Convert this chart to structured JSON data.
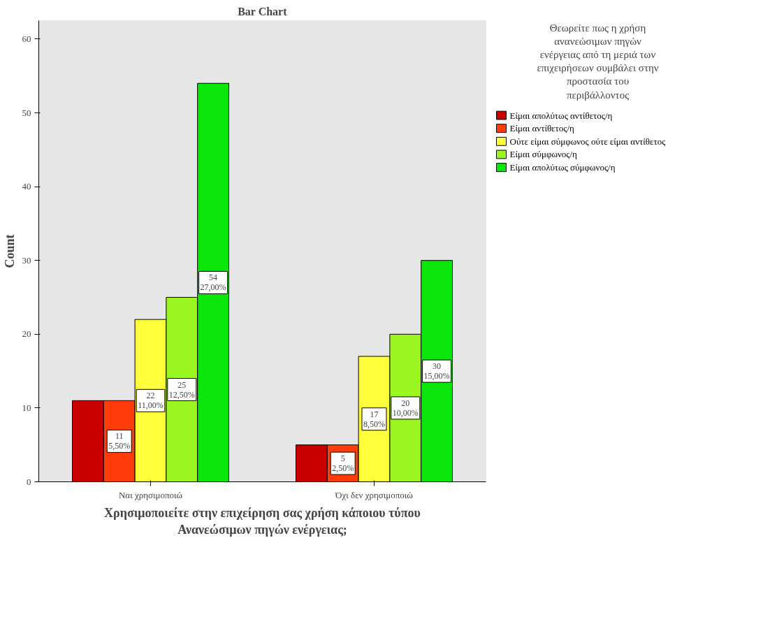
{
  "chart_data": {
    "type": "bar",
    "title": "Bar Chart",
    "xlabel": "Χρησιμοποιείτε στην επιχείρηση σας χρήση κάποιου τύπου Ανανεώσιμων πηγών ενέργειας;",
    "ylabel": "Count",
    "legend_title": "Θεωρείτε πως η χρήση ανανεώσιμων πηγών ενέργειας από τη μεριά των επιχειρήσεων συμβάλει στην προστασία του περιβάλλοντος",
    "categories": [
      "Ναι χρησιμοποιώ",
      "Όχι δεν χρησιμοποιώ"
    ],
    "series": [
      {
        "name": "Είμαι απολύτως αντίθετος/η",
        "color": "#c80000",
        "values": [
          11,
          5
        ]
      },
      {
        "name": "Είμαι αντίθετος/η",
        "color": "#ff3c0a",
        "values": [
          11,
          5
        ],
        "value_labels": [
          "11\n5,50%",
          "5\n2,50%"
        ]
      },
      {
        "name": "Ούτε είμαι σύμφωνος ούτε είμαι αντίθετος",
        "color": "#ffff3c",
        "values": [
          22,
          17
        ],
        "value_labels": [
          "22\n11,00%",
          "17\n8,50%"
        ]
      },
      {
        "name": "Είμαι σύμφωνος/η",
        "color": "#9bf51e",
        "values": [
          25,
          20
        ],
        "value_labels": [
          "25\n12,50%",
          "20\n10,00%"
        ]
      },
      {
        "name": "Είμαι απολύτως σύμφωνος/η",
        "color": "#0ae60a",
        "values": [
          54,
          30
        ],
        "value_labels": [
          "54\n27,00%",
          "30\n15,00%"
        ]
      }
    ],
    "ylim": [
      0,
      62.5
    ],
    "yticks": [
      0,
      10,
      20,
      30,
      40,
      50,
      60
    ],
    "legend": "right"
  }
}
